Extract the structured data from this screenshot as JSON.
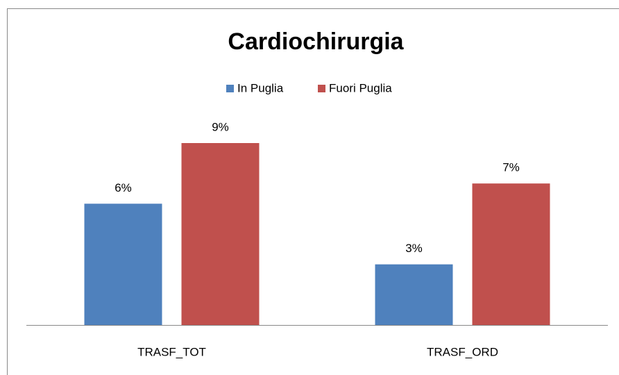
{
  "chart_data": {
    "type": "bar",
    "title": "Cardiochirurgia",
    "categories": [
      "TRASF_TOT",
      "TRASF_ORD"
    ],
    "series": [
      {
        "name": "In Puglia",
        "color": "#4f81bd",
        "values": [
          6,
          3
        ],
        "value_labels": [
          "6%",
          "3%"
        ]
      },
      {
        "name": "Fuori Puglia",
        "color": "#c0504d",
        "values": [
          9,
          7
        ],
        "value_labels": [
          "9%",
          "7%"
        ]
      }
    ]
  }
}
